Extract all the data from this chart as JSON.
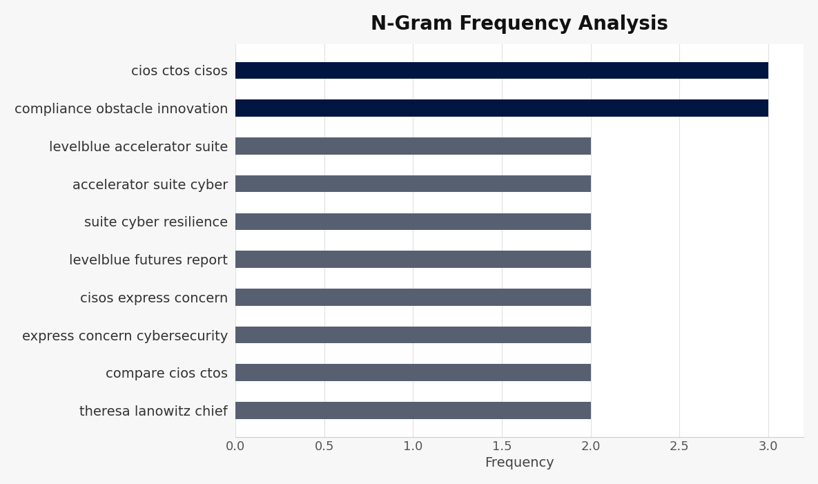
{
  "title": "N-Gram Frequency Analysis",
  "xlabel": "Frequency",
  "categories": [
    "theresa lanowitz chief",
    "compare cios ctos",
    "express concern cybersecurity",
    "cisos express concern",
    "levelblue futures report",
    "suite cyber resilience",
    "accelerator suite cyber",
    "levelblue accelerator suite",
    "compliance obstacle innovation",
    "cios ctos cisos"
  ],
  "values": [
    2,
    2,
    2,
    2,
    2,
    2,
    2,
    2,
    3,
    3
  ],
  "bar_colors": [
    "#576071",
    "#576071",
    "#576071",
    "#576071",
    "#576071",
    "#576071",
    "#576071",
    "#576071",
    "#001540",
    "#001540"
  ],
  "background_color": "#f7f7f7",
  "plot_bg_color": "#ffffff",
  "title_fontsize": 20,
  "label_fontsize": 14,
  "tick_fontsize": 13,
  "xlim": [
    0,
    3.2
  ],
  "xticks": [
    0.0,
    0.5,
    1.0,
    1.5,
    2.0,
    2.5,
    3.0
  ],
  "bar_height": 0.45
}
